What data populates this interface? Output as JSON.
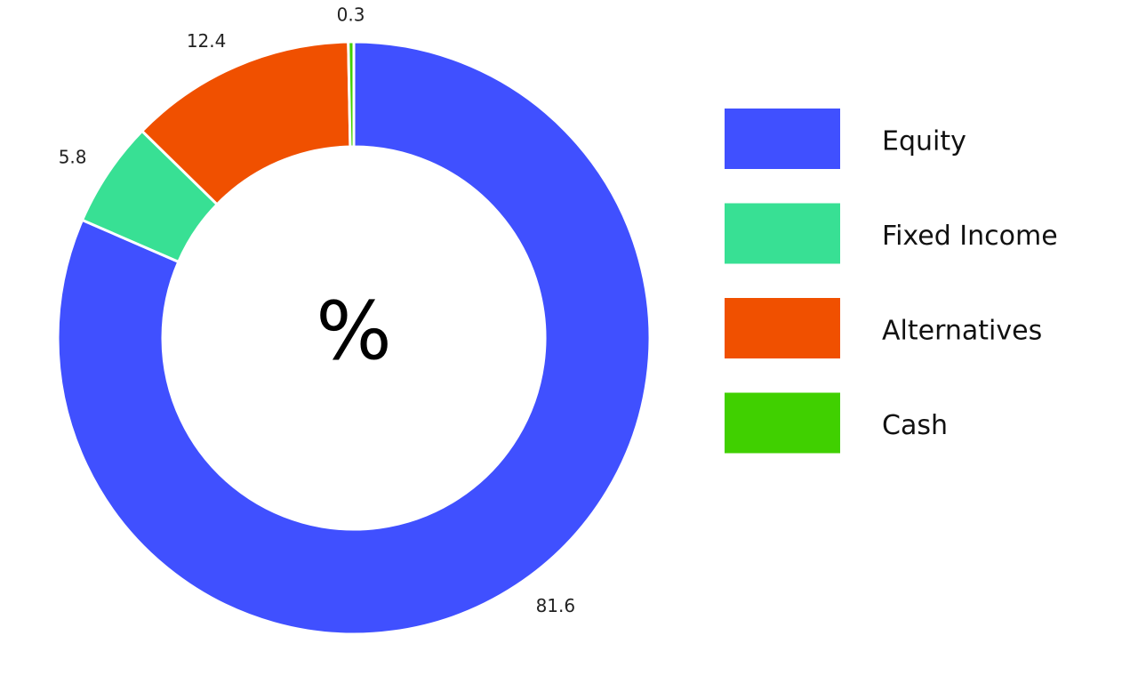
{
  "chart_data": {
    "type": "donut",
    "center_label": "%",
    "categories": [
      "Equity",
      "Fixed Income",
      "Alternatives",
      "Cash"
    ],
    "values": [
      81.6,
      5.8,
      12.4,
      0.3
    ],
    "colors": [
      "#4050ff",
      "#38e094",
      "#f05000",
      "#40d000"
    ],
    "legend": "right"
  }
}
